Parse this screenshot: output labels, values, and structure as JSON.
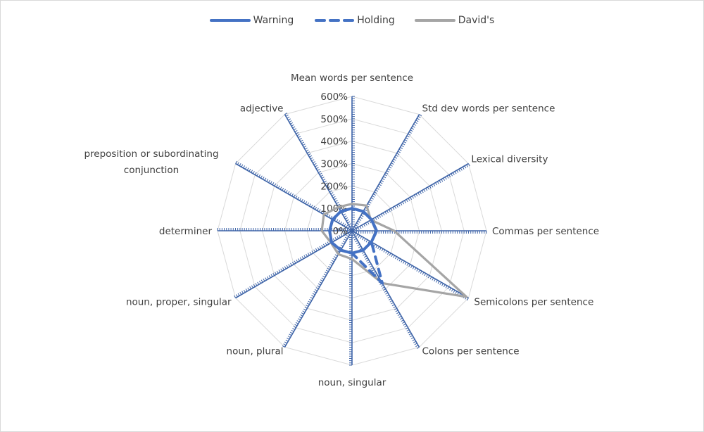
{
  "chart_data": {
    "type": "radar",
    "title": "",
    "axes": [
      "Mean words per sentence",
      "Std dev words per sentence",
      "Lexical diversity",
      "Commas per sentence",
      "Semicolons per sentence",
      "Colons per sentence",
      "noun, singular",
      "noun, plural",
      "noun, proper, singular",
      "determiner",
      "preposition or subordinating conjunction",
      "adjective"
    ],
    "tick_labels": [
      "0%",
      "100%",
      "200%",
      "300%",
      "400%",
      "500%",
      "600%"
    ],
    "rlim": [
      0,
      600
    ],
    "unit": "%",
    "grid": true,
    "legend_position": "top",
    "series": [
      {
        "name": "Warning",
        "color": "#4472c4",
        "style": "solid",
        "values": [
          100,
          100,
          100,
          110,
          100,
          100,
          100,
          100,
          105,
          100,
          100,
          100
        ]
      },
      {
        "name": "Holding",
        "color": "#4472c4",
        "style": "dashed",
        "values": [
          100,
          100,
          100,
          110,
          100,
          270,
          100,
          100,
          105,
          100,
          100,
          100
        ]
      },
      {
        "name": "David's",
        "color": "#a5a5a5",
        "style": "solid",
        "values": [
          120,
          130,
          97,
          188,
          590,
          270,
          126,
          121,
          108,
          135,
          145,
          122
        ]
      }
    ]
  },
  "legend": {
    "items": [
      {
        "label": "Warning",
        "color": "#4472c4",
        "style": "solid"
      },
      {
        "label": "Holding",
        "color": "#4472c4",
        "style": "dashed"
      },
      {
        "label": "David's",
        "color": "#a5a5a5",
        "style": "solid"
      }
    ]
  }
}
